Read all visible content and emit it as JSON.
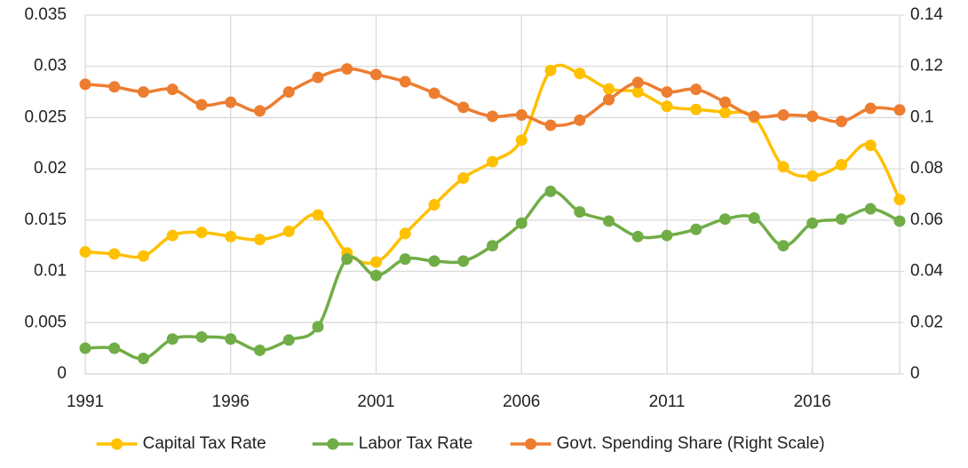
{
  "chart_data": {
    "type": "line",
    "x": [
      1991,
      1992,
      1993,
      1994,
      1995,
      1996,
      1997,
      1998,
      1999,
      2000,
      2001,
      2002,
      2003,
      2004,
      2005,
      2006,
      2007,
      2008,
      2009,
      2010,
      2011,
      2012,
      2013,
      2014,
      2015,
      2016,
      2017,
      2018,
      2019
    ],
    "xlim": [
      1991,
      2019
    ],
    "xticks": [
      1991,
      1996,
      2001,
      2006,
      2011,
      2016
    ],
    "ylim": [
      0,
      0.035
    ],
    "yticks": [
      0,
      0.005,
      0.01,
      0.015,
      0.02,
      0.025,
      0.03,
      0.035
    ],
    "y2lim": [
      0,
      0.14
    ],
    "y2ticks": [
      0,
      0.02,
      0.04,
      0.06,
      0.08,
      0.1,
      0.12,
      0.14
    ],
    "grid": true,
    "legend": "bottom",
    "series": [
      {
        "name": "Capital Tax Rate",
        "color": "#FFC000",
        "values": [
          0.0119,
          0.0117,
          0.0115,
          0.0135,
          0.0138,
          0.0134,
          0.0131,
          0.0139,
          0.0155,
          0.0118,
          0.0109,
          0.0137,
          0.0165,
          0.0191,
          0.0207,
          0.0228,
          0.0296,
          0.0293,
          0.0278,
          0.0275,
          0.0261,
          0.0258,
          0.0255,
          0.025,
          0.0202,
          0.0193,
          0.0204,
          0.0223,
          0.017
        ]
      },
      {
        "name": "Labor Tax Rate",
        "color": "#70AD47",
        "values": [
          0.0025,
          0.0025,
          0.0015,
          0.0034,
          0.0036,
          0.0034,
          0.0023,
          0.0033,
          0.0046,
          0.0112,
          0.0096,
          0.0112,
          0.011,
          0.011,
          0.0125,
          0.0147,
          0.0178,
          0.0158,
          0.0149,
          0.0134,
          0.0135,
          0.0141,
          0.0151,
          0.0152,
          0.0125,
          0.0147,
          0.0151,
          0.0161,
          0.0149
        ]
      },
      {
        "name": "Govt. Spending Share (Right Scale)",
        "color": "#ED7D31",
        "axis": "y2",
        "values": [
          0.113,
          0.112,
          0.11,
          0.111,
          0.105,
          0.106,
          0.1026,
          0.11,
          0.1157,
          0.119,
          0.1168,
          0.114,
          0.1095,
          0.104,
          0.1005,
          0.101,
          0.097,
          0.099,
          0.107,
          0.1137,
          0.11,
          0.111,
          0.106,
          0.1005,
          0.101,
          0.1005,
          0.0985,
          0.1036,
          0.103
        ]
      }
    ]
  }
}
